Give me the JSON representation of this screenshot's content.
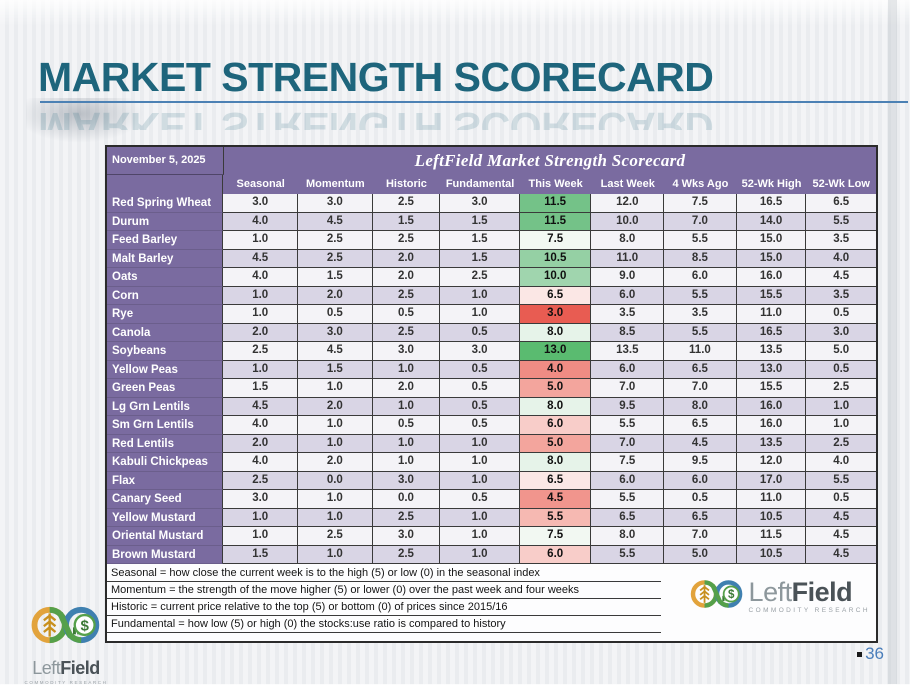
{
  "slide": {
    "title": "MARKET STRENGTH SCORECARD",
    "page_number": "36"
  },
  "scorecard": {
    "date": "November 5, 2025",
    "title": "LeftField Market Strength Scorecard",
    "columns": [
      "Seasonal",
      "Momentum",
      "Historic",
      "Fundamental",
      "This Week",
      "Last Week",
      "4 Wks Ago",
      "52-Wk High",
      "52-Wk Low"
    ],
    "rows": [
      {
        "name": "Red Spring Wheat",
        "values": [
          "3.0",
          "3.0",
          "2.5",
          "3.0",
          "11.5",
          "12.0",
          "7.5",
          "16.5",
          "6.5"
        ],
        "this_week_color": "#74c288"
      },
      {
        "name": "Durum",
        "values": [
          "4.0",
          "4.5",
          "1.5",
          "1.5",
          "11.5",
          "10.0",
          "7.0",
          "14.0",
          "5.5"
        ],
        "this_week_color": "#74c288"
      },
      {
        "name": "Feed Barley",
        "values": [
          "1.0",
          "2.5",
          "2.5",
          "1.5",
          "7.5",
          "8.0",
          "5.5",
          "15.0",
          "3.5"
        ],
        "this_week_color": "#f2f8f2"
      },
      {
        "name": "Malt Barley",
        "values": [
          "4.5",
          "2.5",
          "2.0",
          "1.5",
          "10.5",
          "11.0",
          "8.5",
          "15.0",
          "4.0"
        ],
        "this_week_color": "#95d0a4"
      },
      {
        "name": "Oats",
        "values": [
          "4.0",
          "1.5",
          "2.0",
          "2.5",
          "10.0",
          "9.0",
          "6.0",
          "16.0",
          "4.5"
        ],
        "this_week_color": "#a0d5ae"
      },
      {
        "name": "Corn",
        "values": [
          "1.0",
          "2.0",
          "2.5",
          "1.0",
          "6.5",
          "6.0",
          "5.5",
          "15.5",
          "3.5"
        ],
        "this_week_color": "#fbe7e5"
      },
      {
        "name": "Rye",
        "values": [
          "1.0",
          "0.5",
          "0.5",
          "1.0",
          "3.0",
          "3.5",
          "3.5",
          "11.0",
          "0.5"
        ],
        "this_week_color": "#e85c52"
      },
      {
        "name": "Canola",
        "values": [
          "2.0",
          "3.0",
          "2.5",
          "0.5",
          "8.0",
          "8.5",
          "5.5",
          "16.5",
          "3.0"
        ],
        "this_week_color": "#e6f3e9"
      },
      {
        "name": "Soybeans",
        "values": [
          "2.5",
          "4.5",
          "3.0",
          "3.0",
          "13.0",
          "13.5",
          "11.0",
          "13.5",
          "5.0"
        ],
        "this_week_color": "#5abb70"
      },
      {
        "name": "Yellow Peas",
        "values": [
          "1.0",
          "1.5",
          "1.0",
          "0.5",
          "4.0",
          "6.0",
          "6.5",
          "13.0",
          "0.5"
        ],
        "this_week_color": "#ef8c84"
      },
      {
        "name": "Green Peas",
        "values": [
          "1.5",
          "1.0",
          "2.0",
          "0.5",
          "5.0",
          "7.0",
          "7.0",
          "15.5",
          "2.5"
        ],
        "this_week_color": "#f3a59d"
      },
      {
        "name": "Lg Grn Lentils",
        "values": [
          "4.5",
          "2.0",
          "1.0",
          "0.5",
          "8.0",
          "9.5",
          "8.0",
          "16.0",
          "1.0"
        ],
        "this_week_color": "#e6f3e9"
      },
      {
        "name": "Sm Grn Lentils",
        "values": [
          "4.0",
          "1.0",
          "0.5",
          "0.5",
          "6.0",
          "5.5",
          "6.5",
          "16.0",
          "1.0"
        ],
        "this_week_color": "#f8cdc9"
      },
      {
        "name": "Red Lentils",
        "values": [
          "2.0",
          "1.0",
          "1.0",
          "1.0",
          "5.0",
          "7.0",
          "4.5",
          "13.5",
          "2.5"
        ],
        "this_week_color": "#f3a59d"
      },
      {
        "name": "Kabuli Chickpeas",
        "values": [
          "4.0",
          "2.0",
          "1.0",
          "1.0",
          "8.0",
          "7.5",
          "9.5",
          "12.0",
          "4.0"
        ],
        "this_week_color": "#e6f3e9"
      },
      {
        "name": "Flax",
        "values": [
          "2.5",
          "0.0",
          "3.0",
          "1.0",
          "6.5",
          "6.0",
          "6.0",
          "17.0",
          "5.5"
        ],
        "this_week_color": "#fbe7e5"
      },
      {
        "name": "Canary Seed",
        "values": [
          "3.0",
          "1.0",
          "0.0",
          "0.5",
          "4.5",
          "5.5",
          "0.5",
          "11.0",
          "0.5"
        ],
        "this_week_color": "#f1958d"
      },
      {
        "name": "Yellow Mustard",
        "values": [
          "1.0",
          "1.0",
          "2.5",
          "1.0",
          "5.5",
          "6.5",
          "6.5",
          "10.5",
          "4.5"
        ],
        "this_week_color": "#f6b9b2"
      },
      {
        "name": "Oriental Mustard",
        "values": [
          "1.0",
          "2.5",
          "3.0",
          "1.0",
          "7.5",
          "8.0",
          "7.0",
          "11.5",
          "4.5"
        ],
        "this_week_color": "#f2f8f2"
      },
      {
        "name": "Brown Mustard",
        "values": [
          "1.5",
          "1.0",
          "2.5",
          "1.0",
          "6.0",
          "5.5",
          "5.0",
          "10.5",
          "4.5"
        ],
        "this_week_color": "#f8cdc9"
      }
    ]
  },
  "footnotes": [
    "Seasonal = how close the current week is to the high (5) or low (0) in the seasonal index",
    "Momentum = the strength of the move higher (5) or lower (0) over the past week and four weeks",
    "Historic = current price relative to the top (5) or bottom (0) of prices since 2015/16",
    "Fundamental = how low (5) or high (0) the stocks:use ratio is compared to history"
  ],
  "logo": {
    "brand_left": "Left",
    "brand_right": "Field",
    "tagline": "COMMODITY RESEARCH"
  },
  "colors": {
    "header_purple": "#7a6ba0",
    "row_base": "#f4f3f7",
    "row_alt": "#d9d5e5",
    "title_teal": "#1e657c",
    "underline_blue": "#4c81b4",
    "page_number_blue": "#4a7ebb",
    "scale_high_green": "#5abb70",
    "scale_low_red": "#e85c52"
  }
}
